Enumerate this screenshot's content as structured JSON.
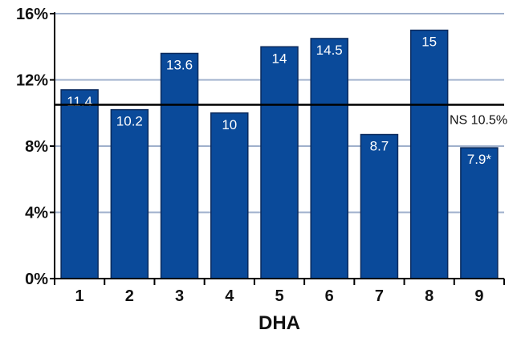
{
  "chart_data": {
    "type": "bar",
    "categories": [
      "1",
      "2",
      "3",
      "4",
      "5",
      "6",
      "7",
      "8",
      "9"
    ],
    "values": [
      11.4,
      10.2,
      13.6,
      10,
      14,
      14.5,
      8.7,
      15,
      7.9
    ],
    "value_labels": [
      "11.4",
      "10.2",
      "13.6",
      "10",
      "14",
      "14.5",
      "8.7",
      "15",
      "7.9*"
    ],
    "xlabel": "DHA",
    "ylabel": "",
    "ylim": [
      0,
      16
    ],
    "y_ticks": [
      0,
      4,
      8,
      12,
      16
    ],
    "y_tick_labels": [
      "0%",
      "4%",
      "8%",
      "12%",
      "16%"
    ],
    "reference_line": {
      "value": 10.5,
      "label": "NS 10.5%"
    },
    "grid": true,
    "colors": {
      "bar": "#0a4a9a",
      "grid": "#9fb0cc",
      "reference": "#000000",
      "axis": "#000000"
    }
  }
}
